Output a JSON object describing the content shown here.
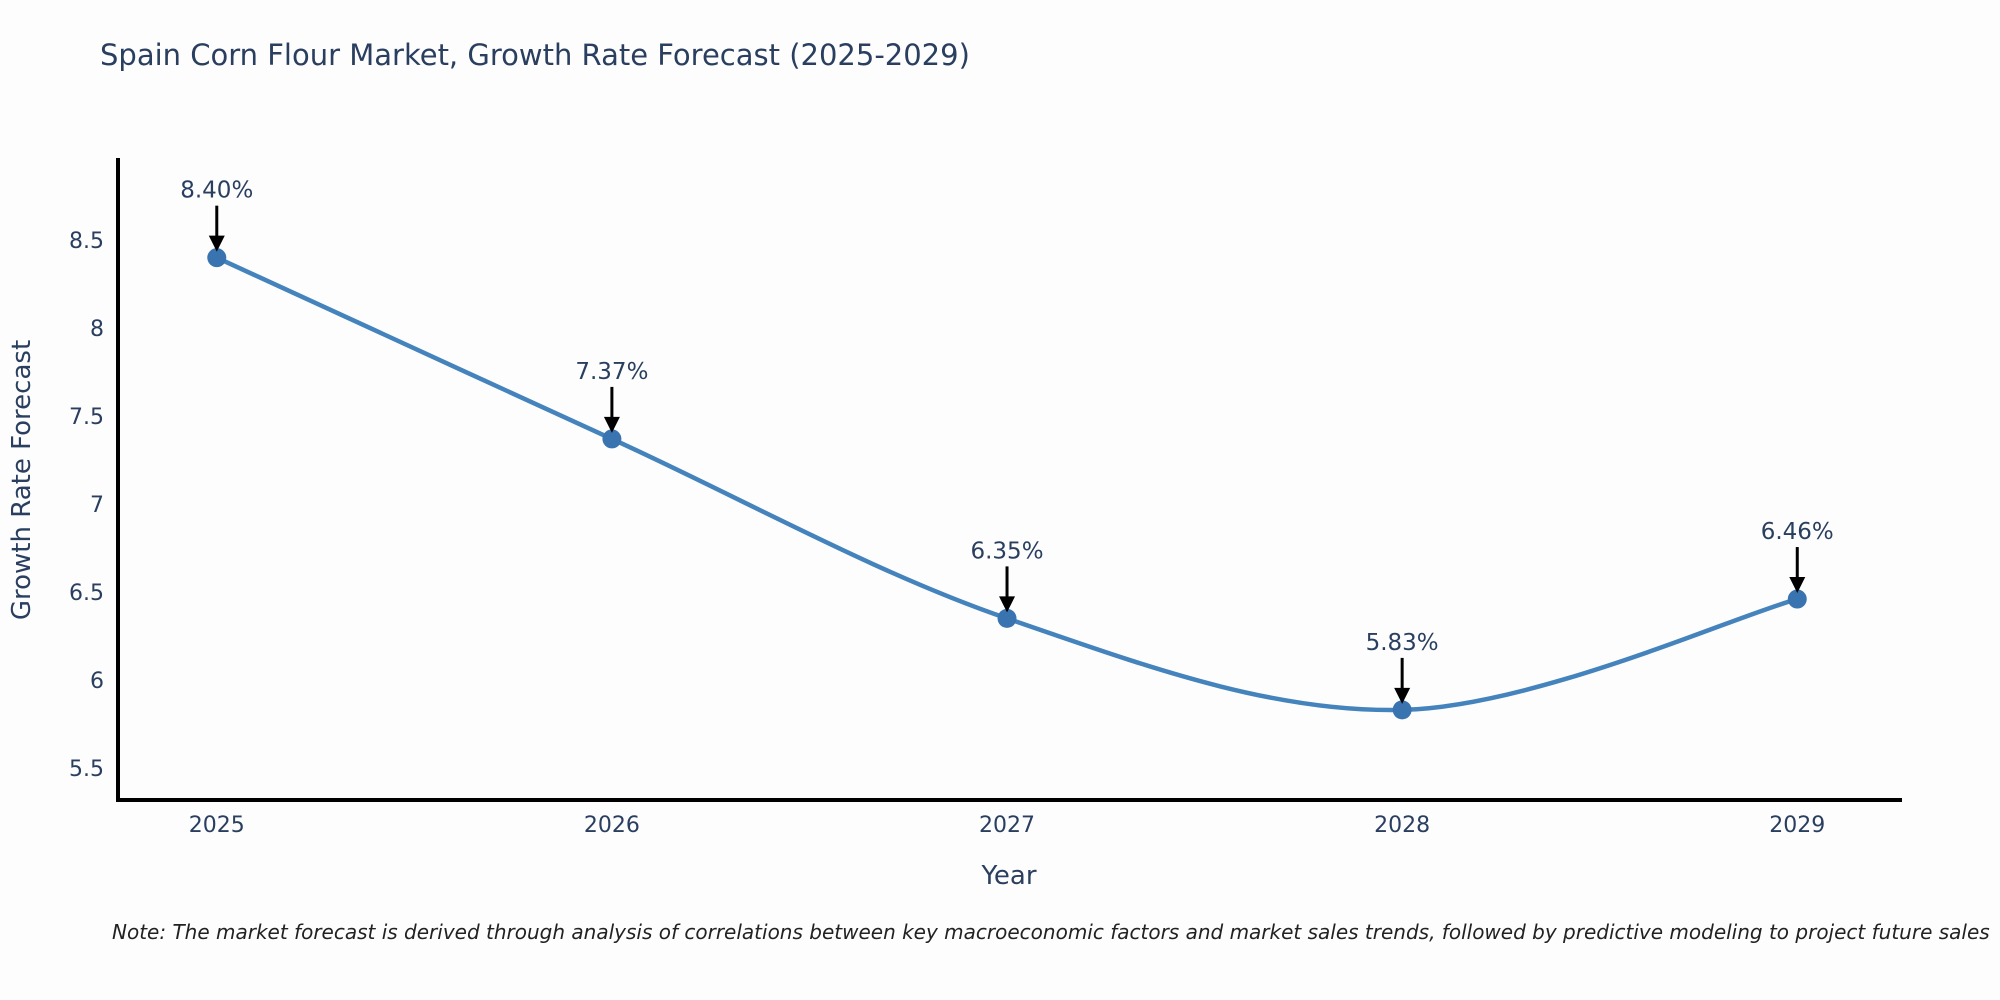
{
  "note": "Note: The market forecast is derived through analysis of correlations between key macroeconomic factors and market sales trends, followed by predictive modeling to project future sales",
  "chart_data": {
    "type": "line",
    "title": "Spain Corn Flour Market, Growth Rate Forecast (2025-2029)",
    "xlabel": "Year",
    "ylabel": "Growth Rate Forecast",
    "x": [
      2025,
      2026,
      2027,
      2028,
      2029
    ],
    "y": [
      8.4,
      7.37,
      6.35,
      5.83,
      6.46
    ],
    "point_labels": [
      "8.40%",
      "7.37%",
      "6.35%",
      "5.83%",
      "6.46%"
    ],
    "xtick_labels": [
      "2025",
      "2026",
      "2027",
      "2028",
      "2029"
    ],
    "xticks": [
      2025,
      2026,
      2027,
      2028,
      2029
    ],
    "ytick_labels": [
      "5.5",
      "6",
      "6.5",
      "7",
      "7.5",
      "8",
      "8.5"
    ],
    "yticks": [
      5.5,
      6,
      6.5,
      7,
      7.5,
      8,
      8.5
    ],
    "xlim": [
      2024.75,
      2029.26
    ],
    "ylim": [
      5.318,
      8.955
    ],
    "grid": false,
    "legend": "none",
    "line_shape": "spline",
    "colors": {
      "line": "#4583bc",
      "marker": "#3974b0",
      "arrow": "#000000",
      "text": "#2a3f5f",
      "axis": "#000000"
    }
  }
}
